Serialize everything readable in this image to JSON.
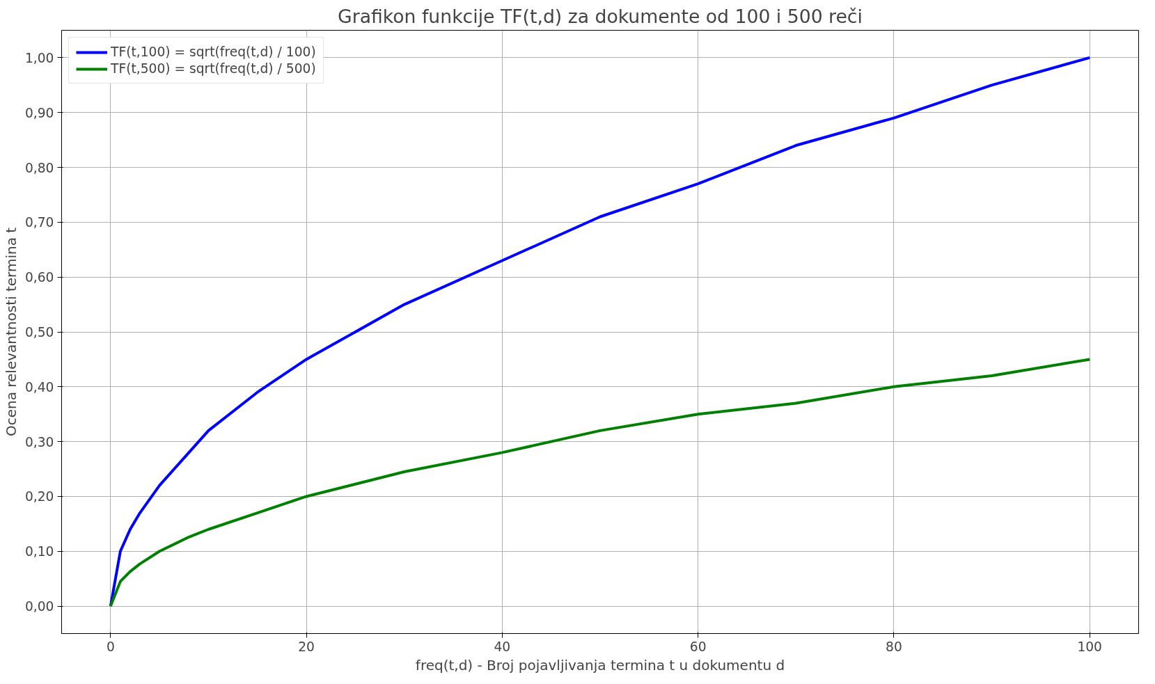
{
  "chart_data": {
    "type": "line",
    "title": "Grafikon funkcije TF(t,d) za dokumente od 100 i 500 reči",
    "xlabel": "freq(t,d) - Broj pojavljivanja termina t u dokumentu d",
    "ylabel": "Ocena relevantnosti termina t",
    "x": [
      0,
      1,
      2,
      3,
      5,
      8,
      10,
      15,
      20,
      30,
      40,
      50,
      60,
      70,
      80,
      90,
      100
    ],
    "series": [
      {
        "name": "TF(t,100) = sqrt(freq(t,d) / 100)",
        "color": "#0000ff",
        "values": [
          0,
          0.1,
          0.14,
          0.17,
          0.22,
          0.28,
          0.32,
          0.39,
          0.45,
          0.55,
          0.63,
          0.71,
          0.77,
          0.84,
          0.89,
          0.95,
          1.0
        ]
      },
      {
        "name": "TF(t,500) = sqrt(freq(t,d) / 500)",
        "color": "#008000",
        "values": [
          0,
          0.045,
          0.063,
          0.077,
          0.1,
          0.126,
          0.14,
          0.17,
          0.2,
          0.245,
          0.28,
          0.32,
          0.35,
          0.37,
          0.4,
          0.42,
          0.45
        ]
      }
    ],
    "xlim": [
      -5,
      105
    ],
    "ylim": [
      -0.05,
      1.05
    ],
    "xticks": [
      0,
      20,
      40,
      60,
      80,
      100
    ],
    "yticks": [
      {
        "value": 0,
        "label": "0,00"
      },
      {
        "value": 0.1,
        "label": "0,10"
      },
      {
        "value": 0.2,
        "label": "0,20"
      },
      {
        "value": 0.3,
        "label": "0,30"
      },
      {
        "value": 0.4,
        "label": "0,40"
      },
      {
        "value": 0.5,
        "label": "0,50"
      },
      {
        "value": 0.6,
        "label": "0,60"
      },
      {
        "value": 0.7,
        "label": "0,70"
      },
      {
        "value": 0.8,
        "label": "0,80"
      },
      {
        "value": 0.9,
        "label": "0,90"
      },
      {
        "value": 1.0,
        "label": "1,00"
      }
    ],
    "grid": true,
    "legend": "top left",
    "line_style": "solid",
    "marker": "none"
  }
}
